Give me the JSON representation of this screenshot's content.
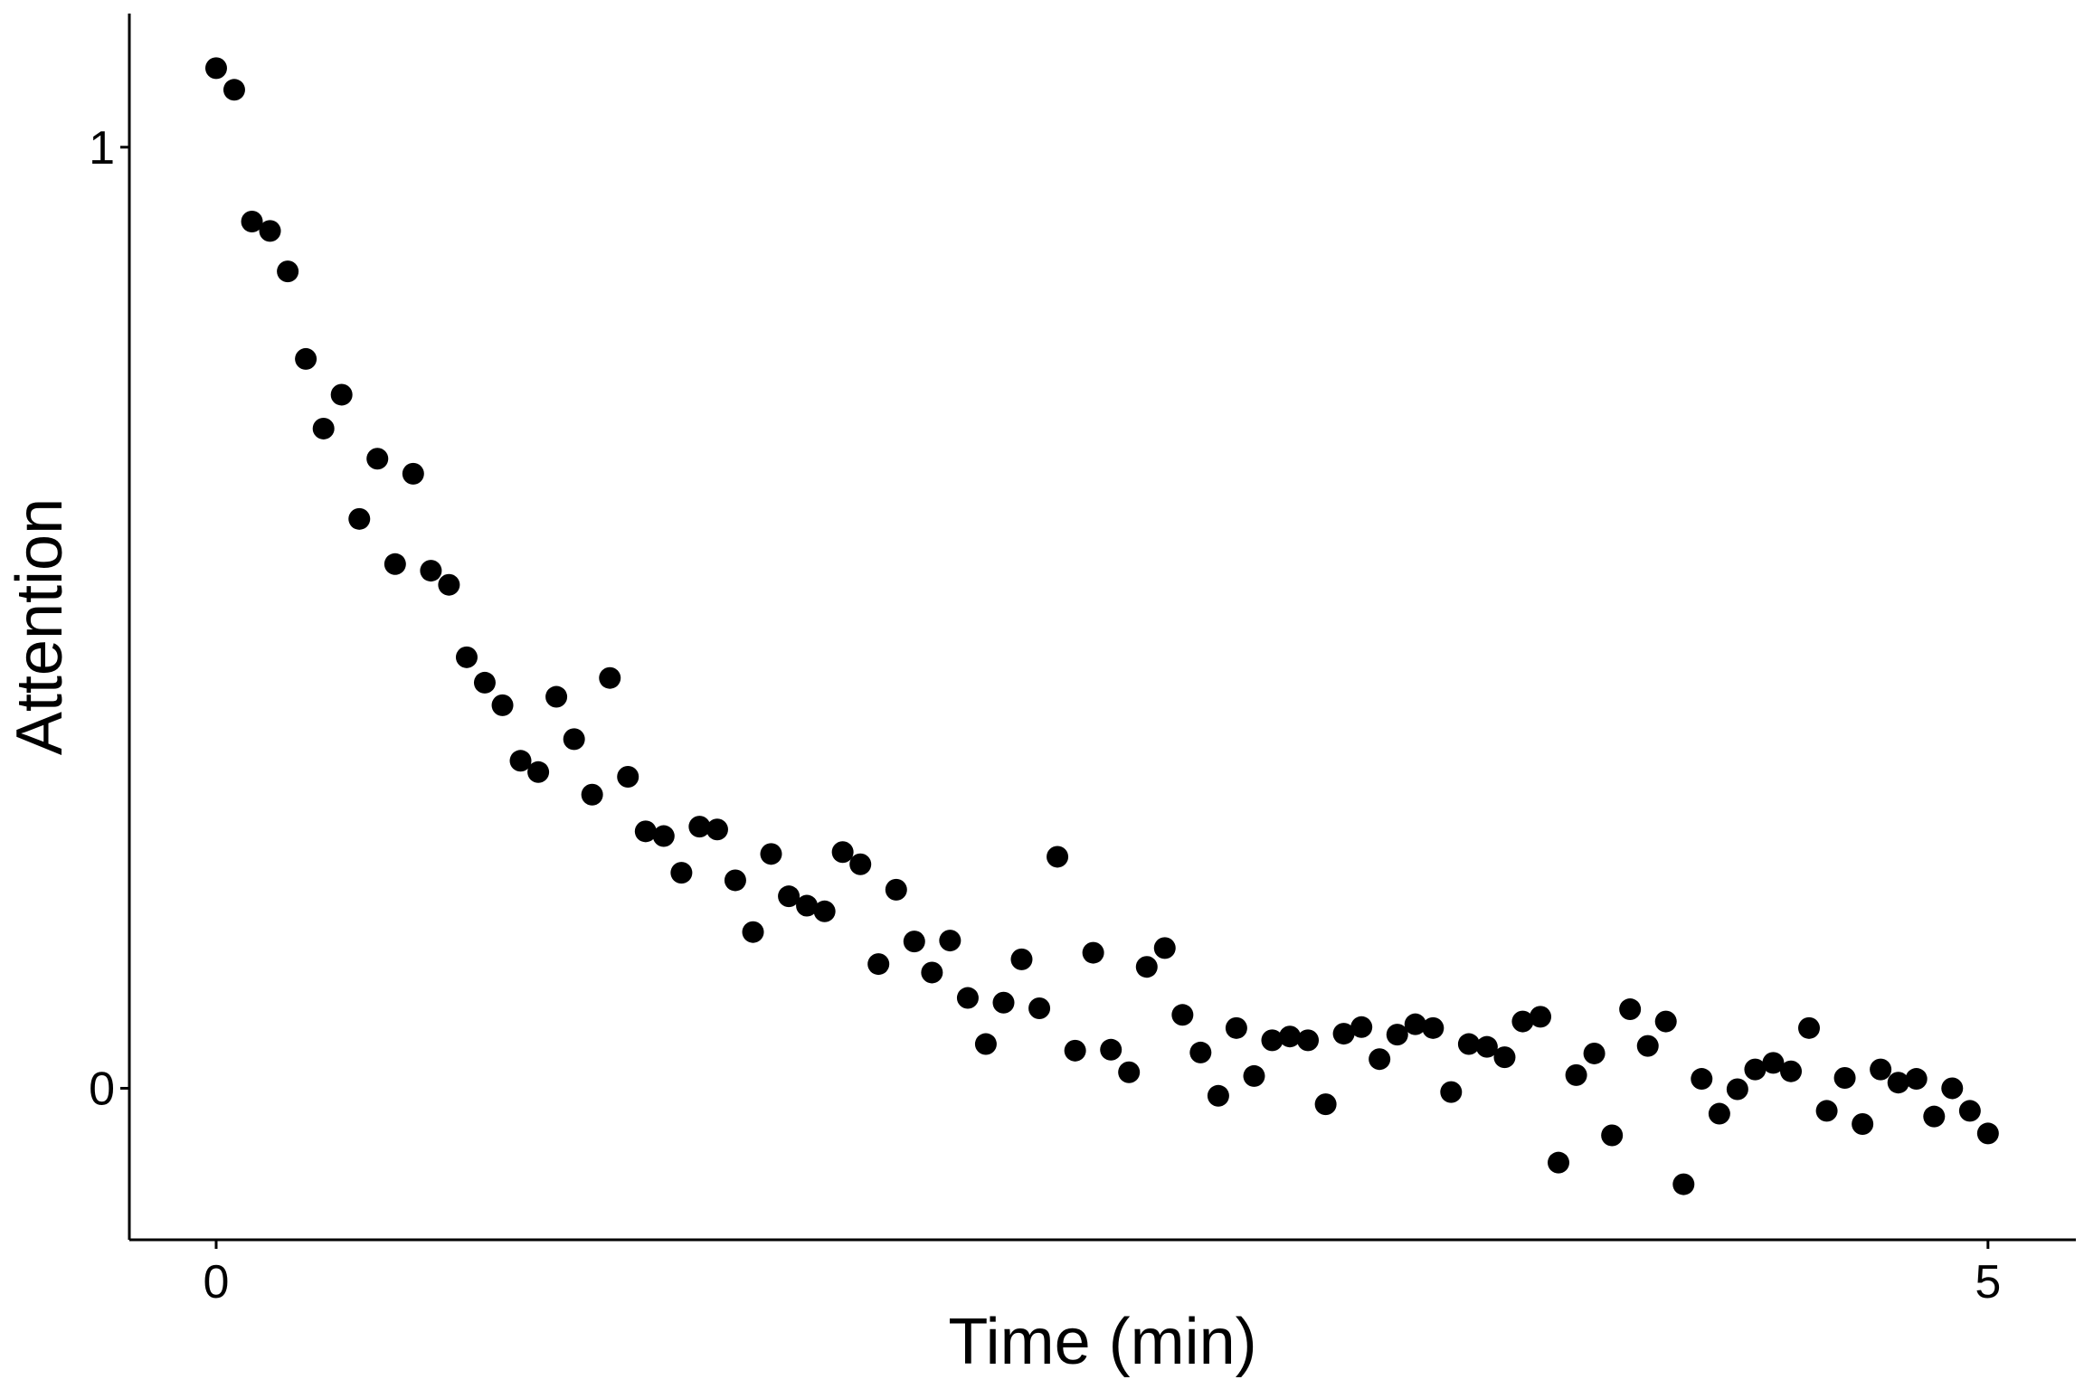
{
  "chart_data": {
    "type": "scatter",
    "x_label": "Time (min)",
    "y_label": "Attention",
    "x": [
      0,
      0.051,
      0.101,
      0.152,
      0.202,
      0.253,
      0.303,
      0.354,
      0.404,
      0.455,
      0.505,
      0.556,
      0.606,
      0.657,
      0.707,
      0.758,
      0.808,
      0.859,
      0.909,
      0.96,
      1.01,
      1.061,
      1.111,
      1.162,
      1.212,
      1.263,
      1.313,
      1.364,
      1.414,
      1.465,
      1.515,
      1.566,
      1.616,
      1.667,
      1.717,
      1.768,
      1.818,
      1.869,
      1.919,
      1.97,
      2.02,
      2.071,
      2.121,
      2.172,
      2.222,
      2.273,
      2.323,
      2.374,
      2.424,
      2.475,
      2.525,
      2.576,
      2.626,
      2.677,
      2.727,
      2.778,
      2.828,
      2.879,
      2.929,
      2.98,
      3.03,
      3.081,
      3.131,
      3.182,
      3.232,
      3.283,
      3.333,
      3.384,
      3.434,
      3.485,
      3.535,
      3.586,
      3.636,
      3.687,
      3.737,
      3.788,
      3.838,
      3.889,
      3.939,
      3.99,
      4.04,
      4.091,
      4.141,
      4.192,
      4.242,
      4.293,
      4.343,
      4.394,
      4.444,
      4.495,
      4.545,
      4.596,
      4.646,
      4.697,
      4.747,
      4.798,
      4.848,
      4.899,
      4.949,
      5
    ],
    "values": [
      1.084,
      1.061,
      0.921,
      0.911,
      0.868,
      0.775,
      0.701,
      0.737,
      0.605,
      0.669,
      0.557,
      0.653,
      0.55,
      0.535,
      0.458,
      0.431,
      0.407,
      0.348,
      0.336,
      0.416,
      0.371,
      0.312,
      0.436,
      0.331,
      0.273,
      0.268,
      0.229,
      0.278,
      0.275,
      0.221,
      0.166,
      0.249,
      0.204,
      0.194,
      0.188,
      0.251,
      0.238,
      0.132,
      0.211,
      0.156,
      0.123,
      0.157,
      0.096,
      0.047,
      0.091,
      0.137,
      0.085,
      0.246,
      0.04,
      0.144,
      0.041,
      0.017,
      0.129,
      0.149,
      0.078,
      0.038,
      -0.008,
      0.064,
      0.013,
      0.051,
      0.055,
      0.051,
      -0.017,
      0.058,
      0.065,
      0.031,
      0.057,
      0.068,
      0.064,
      -0.004,
      0.047,
      0.044,
      0.033,
      0.071,
      0.076,
      -0.079,
      0.014,
      0.037,
      -0.05,
      0.084,
      0.045,
      0.071,
      -0.102,
      0.01,
      -0.027,
      -0.001,
      0.02,
      0.027,
      0.018,
      0.064,
      -0.024,
      0.011,
      -0.038,
      0.02,
      0.006,
      0.01,
      -0.03,
      0.0,
      -0.024,
      -0.048
    ],
    "color": "#000000",
    "xlim": [
      -0.245,
      5.248
    ],
    "ylim": [
      -0.161,
      1.142
    ],
    "xticks": [
      0,
      5
    ],
    "yticks": [
      0,
      1
    ],
    "grid": false
  }
}
